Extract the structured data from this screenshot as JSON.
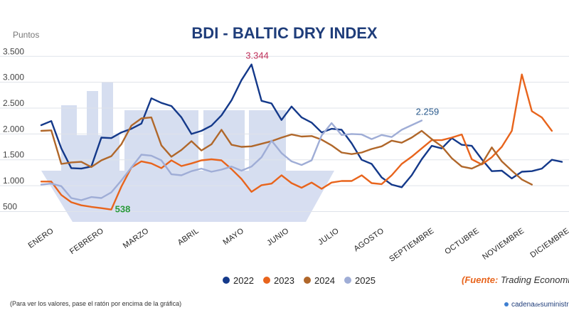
{
  "chart_data": {
    "type": "line",
    "title": "BDI - BALTIC DRY INDEX",
    "ylabel": "Puntos",
    "ylim": [
      300,
      3600
    ],
    "yticks": [
      {
        "value": 500,
        "label": "500"
      },
      {
        "value": 1000,
        "label": "1.000"
      },
      {
        "value": 1500,
        "label": "1.500"
      },
      {
        "value": 2000,
        "label": "2.000"
      },
      {
        "value": 2500,
        "label": "2.500"
      },
      {
        "value": 3000,
        "label": "3.000"
      },
      {
        "value": 3500,
        "label": "3.500"
      }
    ],
    "xlim": [
      0,
      52
    ],
    "months": [
      {
        "label": "ENERO",
        "pos": 0
      },
      {
        "label": "FEBRERO",
        "pos": 5
      },
      {
        "label": "MARZO",
        "pos": 9.5
      },
      {
        "label": "ABRIL",
        "pos": 14.5
      },
      {
        "label": "MAYO",
        "pos": 19
      },
      {
        "label": "JUNIO",
        "pos": 23.5
      },
      {
        "label": "JULIO",
        "pos": 28.5
      },
      {
        "label": "AGOSTO",
        "pos": 33
      },
      {
        "label": "SEPTIEMBRE",
        "pos": 38
      },
      {
        "label": "OCTUBRE",
        "pos": 42.5
      },
      {
        "label": "NOVIEMBRE",
        "pos": 47
      },
      {
        "label": "DICIEMBRE",
        "pos": 51.5
      }
    ],
    "series": [
      {
        "name": "2022",
        "color": "#14398a",
        "values": [
          [
            0,
            2170
          ],
          [
            1,
            2250
          ],
          [
            2,
            1720
          ],
          [
            3,
            1340
          ],
          [
            4,
            1330
          ],
          [
            5,
            1370
          ],
          [
            6,
            1930
          ],
          [
            7,
            1920
          ],
          [
            8,
            2030
          ],
          [
            9,
            2100
          ],
          [
            10,
            2200
          ],
          [
            11,
            2690
          ],
          [
            12,
            2600
          ],
          [
            13,
            2540
          ],
          [
            14,
            2320
          ],
          [
            15,
            2000
          ],
          [
            16,
            2060
          ],
          [
            17,
            2160
          ],
          [
            18,
            2360
          ],
          [
            19,
            2650
          ],
          [
            20,
            3040
          ],
          [
            21,
            3344
          ],
          [
            22,
            2640
          ],
          [
            23,
            2590
          ],
          [
            24,
            2270
          ],
          [
            25,
            2530
          ],
          [
            26,
            2320
          ],
          [
            27,
            2220
          ],
          [
            28,
            2030
          ],
          [
            29,
            2100
          ],
          [
            30,
            2080
          ],
          [
            31,
            1820
          ],
          [
            32,
            1500
          ],
          [
            33,
            1420
          ],
          [
            34,
            1160
          ],
          [
            35,
            1020
          ],
          [
            36,
            970
          ],
          [
            37,
            1200
          ],
          [
            38,
            1510
          ],
          [
            39,
            1770
          ],
          [
            40,
            1720
          ],
          [
            41,
            1920
          ],
          [
            42,
            1790
          ],
          [
            43,
            1770
          ],
          [
            44,
            1510
          ],
          [
            45,
            1280
          ],
          [
            46,
            1290
          ],
          [
            47,
            1140
          ],
          [
            48,
            1270
          ],
          [
            49,
            1280
          ],
          [
            50,
            1330
          ],
          [
            51,
            1500
          ],
          [
            52,
            1460
          ]
        ]
      },
      {
        "name": "2023",
        "color": "#e8641c",
        "values": [
          [
            0,
            1080
          ],
          [
            1,
            1080
          ],
          [
            2,
            820
          ],
          [
            3,
            680
          ],
          [
            4,
            620
          ],
          [
            5,
            590
          ],
          [
            6,
            565
          ],
          [
            7,
            538
          ],
          [
            8,
            980
          ],
          [
            9,
            1350
          ],
          [
            10,
            1470
          ],
          [
            11,
            1430
          ],
          [
            12,
            1340
          ],
          [
            13,
            1490
          ],
          [
            14,
            1380
          ],
          [
            15,
            1430
          ],
          [
            16,
            1490
          ],
          [
            17,
            1510
          ],
          [
            18,
            1490
          ],
          [
            19,
            1320
          ],
          [
            20,
            1130
          ],
          [
            21,
            880
          ],
          [
            22,
            1010
          ],
          [
            23,
            1040
          ],
          [
            24,
            1200
          ],
          [
            25,
            1050
          ],
          [
            26,
            960
          ],
          [
            27,
            1060
          ],
          [
            28,
            940
          ],
          [
            29,
            1060
          ],
          [
            30,
            1090
          ],
          [
            31,
            1090
          ],
          [
            32,
            1200
          ],
          [
            33,
            1050
          ],
          [
            34,
            1030
          ],
          [
            35,
            1200
          ],
          [
            36,
            1420
          ],
          [
            37,
            1560
          ],
          [
            38,
            1720
          ],
          [
            39,
            1880
          ],
          [
            40,
            1880
          ],
          [
            41,
            1930
          ],
          [
            42,
            1990
          ],
          [
            43,
            1510
          ],
          [
            44,
            1410
          ],
          [
            45,
            1550
          ],
          [
            46,
            1750
          ],
          [
            47,
            2060
          ],
          [
            48,
            3150
          ],
          [
            49,
            2440
          ],
          [
            50,
            2320
          ],
          [
            51,
            2060
          ]
        ]
      },
      {
        "name": "2024",
        "color": "#b0672a",
        "values": [
          [
            0,
            2060
          ],
          [
            1,
            2070
          ],
          [
            2,
            1420
          ],
          [
            3,
            1450
          ],
          [
            4,
            1460
          ],
          [
            5,
            1360
          ],
          [
            6,
            1490
          ],
          [
            7,
            1570
          ],
          [
            8,
            1800
          ],
          [
            9,
            2160
          ],
          [
            10,
            2300
          ],
          [
            11,
            2320
          ],
          [
            12,
            1780
          ],
          [
            13,
            1560
          ],
          [
            14,
            1690
          ],
          [
            15,
            1860
          ],
          [
            16,
            1680
          ],
          [
            17,
            1800
          ],
          [
            18,
            2080
          ],
          [
            19,
            1790
          ],
          [
            20,
            1750
          ],
          [
            21,
            1760
          ],
          [
            22,
            1810
          ],
          [
            23,
            1860
          ],
          [
            24,
            1930
          ],
          [
            25,
            1990
          ],
          [
            26,
            1950
          ],
          [
            27,
            1960
          ],
          [
            28,
            1890
          ],
          [
            29,
            1780
          ],
          [
            30,
            1640
          ],
          [
            31,
            1610
          ],
          [
            32,
            1640
          ],
          [
            33,
            1710
          ],
          [
            34,
            1760
          ],
          [
            35,
            1870
          ],
          [
            36,
            1830
          ],
          [
            37,
            1930
          ],
          [
            38,
            2060
          ],
          [
            39,
            1900
          ],
          [
            40,
            1760
          ],
          [
            41,
            1530
          ],
          [
            42,
            1370
          ],
          [
            43,
            1330
          ],
          [
            44,
            1420
          ],
          [
            45,
            1740
          ],
          [
            46,
            1470
          ],
          [
            47,
            1290
          ],
          [
            48,
            1120
          ],
          [
            49,
            1020
          ]
        ]
      },
      {
        "name": "2025",
        "color": "#9fadd6",
        "values": [
          [
            0,
            1020
          ],
          [
            1,
            1040
          ],
          [
            2,
            990
          ],
          [
            3,
            760
          ],
          [
            4,
            720
          ],
          [
            5,
            780
          ],
          [
            6,
            760
          ],
          [
            7,
            870
          ],
          [
            8,
            1100
          ],
          [
            9,
            1350
          ],
          [
            10,
            1600
          ],
          [
            11,
            1580
          ],
          [
            12,
            1490
          ],
          [
            13,
            1220
          ],
          [
            14,
            1200
          ],
          [
            15,
            1280
          ],
          [
            16,
            1330
          ],
          [
            17,
            1270
          ],
          [
            18,
            1310
          ],
          [
            19,
            1370
          ],
          [
            20,
            1290
          ],
          [
            21,
            1370
          ],
          [
            22,
            1550
          ],
          [
            23,
            1870
          ],
          [
            24,
            1630
          ],
          [
            25,
            1470
          ],
          [
            26,
            1400
          ],
          [
            27,
            1490
          ],
          [
            28,
            1970
          ],
          [
            29,
            2210
          ],
          [
            30,
            1980
          ],
          [
            31,
            2000
          ],
          [
            32,
            1990
          ],
          [
            33,
            1900
          ],
          [
            34,
            1980
          ],
          [
            35,
            1940
          ],
          [
            36,
            2080
          ],
          [
            37,
            2170
          ],
          [
            38,
            2259
          ]
        ]
      }
    ],
    "annotations": [
      {
        "text": "3.344",
        "x": 21,
        "y": 3344,
        "color": "#c0305a"
      },
      {
        "text": "538",
        "x": 7,
        "y": 538,
        "color": "#2a9a3a"
      },
      {
        "text": "2.259",
        "x": 38,
        "y": 2259,
        "color": "#2a5a8c"
      }
    ]
  },
  "legend": [
    {
      "label": "2022",
      "color": "#14398a"
    },
    {
      "label": "2023",
      "color": "#e8641c"
    },
    {
      "label": "2024",
      "color": "#b0672a"
    },
    {
      "label": "2025",
      "color": "#9fadd6"
    }
  ],
  "source": {
    "open": "(",
    "label": "Fuente:",
    "value": " Trading Economic)"
  },
  "footnote": "(Para ver los valores, pase el ratón por encima de la gráfica)",
  "brand": {
    "left": "cadena",
    "middle": "de",
    "right": "suministro"
  }
}
